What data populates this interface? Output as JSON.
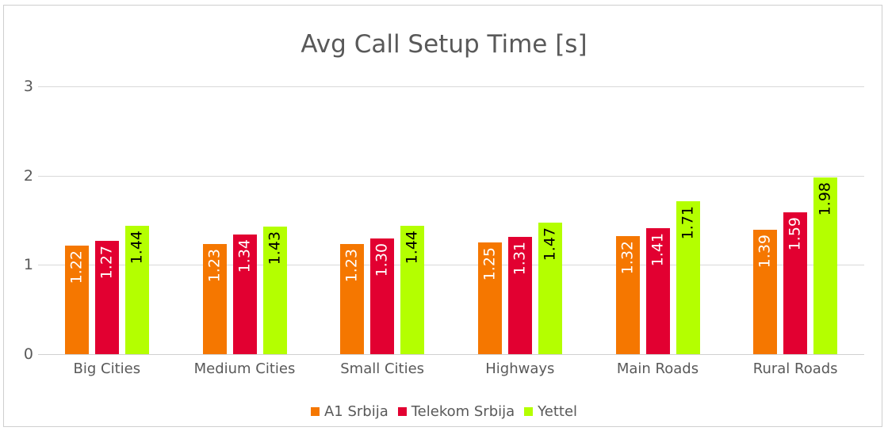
{
  "chart_data": {
    "type": "bar",
    "title": "Avg Call Setup Time [s]",
    "xlabel": "",
    "ylabel": "",
    "ylim": [
      0,
      3
    ],
    "yticks": [
      0,
      1,
      2,
      3
    ],
    "grid": true,
    "legend_position": "bottom",
    "categories": [
      "Big Cities",
      "Medium Cities",
      "Small Cities",
      "Highways",
      "Main Roads",
      "Rural Roads"
    ],
    "series": [
      {
        "name": "A1 Srbija",
        "color": "#f57700",
        "label_color": "#ffffff",
        "values": [
          1.22,
          1.23,
          1.23,
          1.25,
          1.32,
          1.39
        ],
        "labels": [
          "1.22",
          "1.23",
          "1.23",
          "1.25",
          "1.32",
          "1.39"
        ]
      },
      {
        "name": "Telekom Srbija",
        "color": "#e20031",
        "label_color": "#ffffff",
        "values": [
          1.27,
          1.34,
          1.3,
          1.31,
          1.41,
          1.59
        ],
        "labels": [
          "1.27",
          "1.34",
          "1.30",
          "1.31",
          "1.41",
          "1.59"
        ]
      },
      {
        "name": "Yettel",
        "color": "#b4ff00",
        "label_color": "#000000",
        "values": [
          1.44,
          1.43,
          1.44,
          1.47,
          1.71,
          1.98
        ],
        "labels": [
          "1.44",
          "1.43",
          "1.44",
          "1.47",
          "1.71",
          "1.98"
        ]
      }
    ]
  }
}
